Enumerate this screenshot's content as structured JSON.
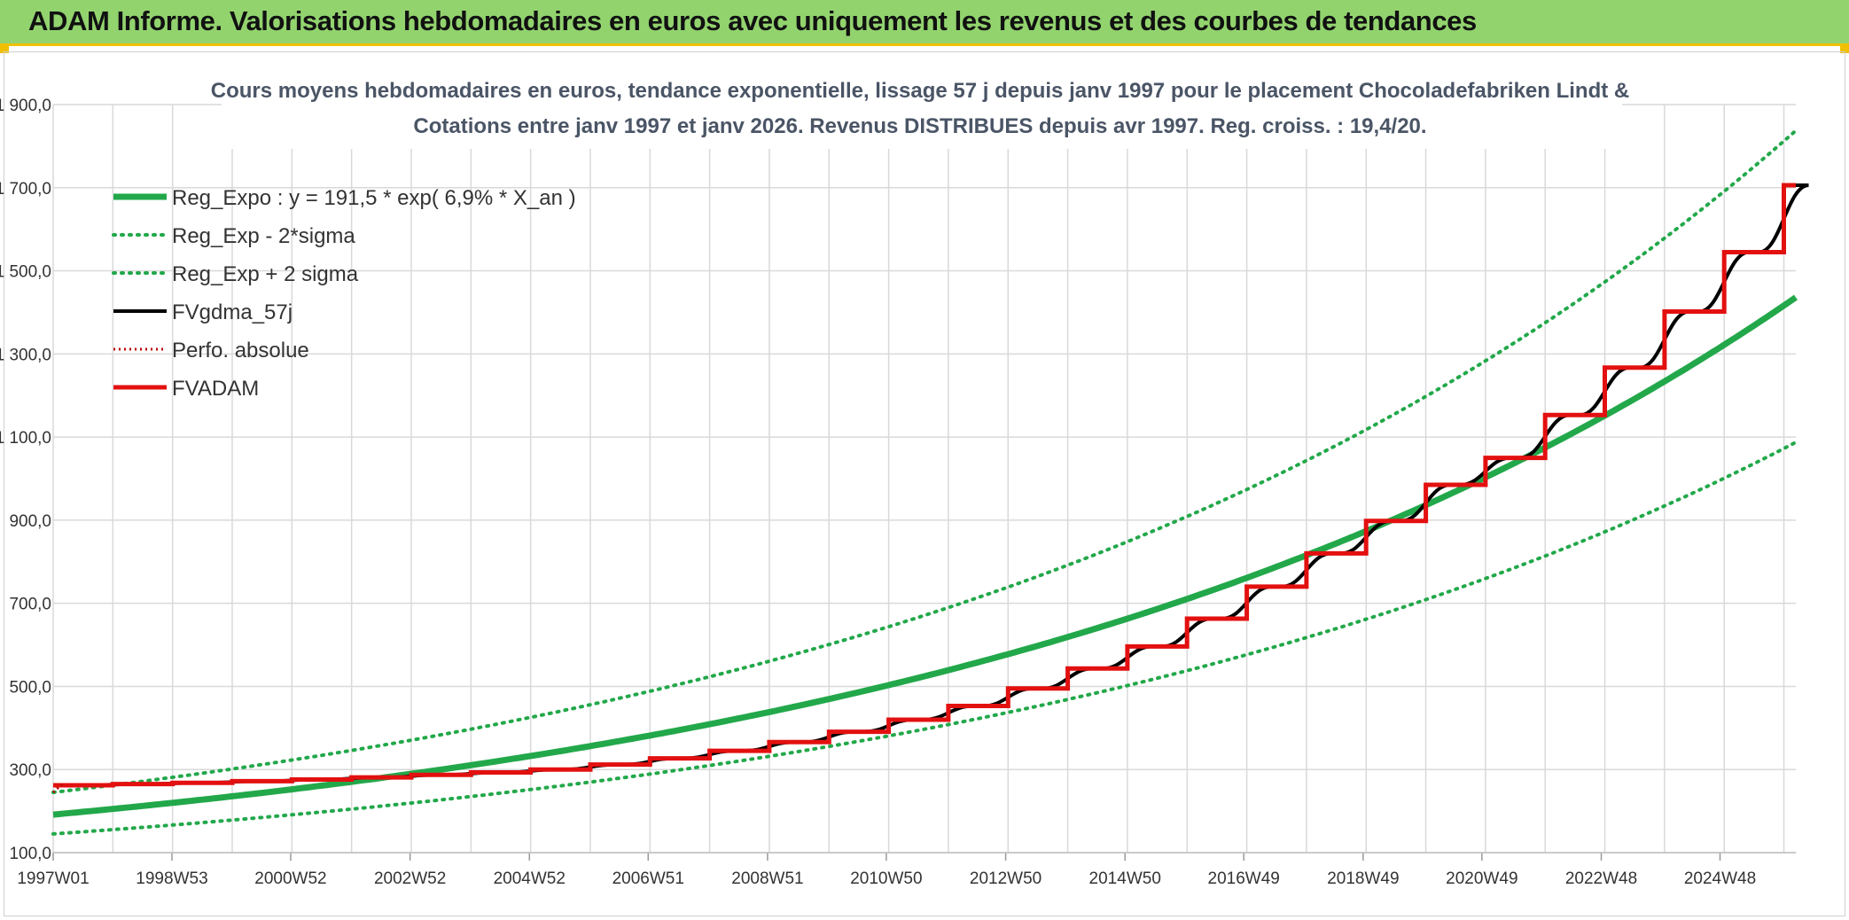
{
  "banner": {
    "title": "ADAM Informe. Valorisations hebdomadaires en euros avec uniquement les revenus et des courbes de tendances"
  },
  "chart_data": {
    "type": "line",
    "title": "Cours moyens hebdomadaires en euros, tendance exponentielle, lissage 57 j depuis janv 1997 pour le placement Chocoladefabriken Lindt &",
    "subtitle": "Cotations entre janv 1997 et janv 2026. Revenus DISTRIBUES depuis avr 1997. Reg. croiss. : 19,4/20.",
    "xlabel": "",
    "ylabel": "",
    "xlim": [
      1997.0,
      2026.2
    ],
    "ylim": [
      100,
      1900
    ],
    "y_ticks": [
      100,
      300,
      500,
      700,
      900,
      1100,
      1300,
      1500,
      1700,
      1900
    ],
    "y_tick_labels": [
      "100,0",
      "300,0",
      "500,0",
      "700,0",
      "900,0",
      "1 100,0",
      "1 300,0",
      "1 500,0",
      "1 700,0",
      "1 900,0"
    ],
    "x_ticks": [
      1997.0,
      1998.99,
      2000.98,
      2002.98,
      2004.98,
      2006.97,
      2008.97,
      2010.96,
      2012.96,
      2014.96,
      2016.95,
      2018.95,
      2020.94,
      2022.94,
      2024.93
    ],
    "x_tick_labels": [
      "1997W01",
      "1998W53",
      "2000W52",
      "2002W52",
      "2004W52",
      "2006W51",
      "2008W51",
      "2010W50",
      "2012W50",
      "2014W50",
      "2016W49",
      "2018W49",
      "2020W49",
      "2022W48",
      "2024W48"
    ],
    "grid": true,
    "legend_position": "top-left",
    "colors": {
      "trend": "#22a84a",
      "fvgdma": "#000000",
      "fvadam": "#e31010",
      "perfo": "#c00000",
      "grid": "#d9d9d9"
    },
    "series": [
      {
        "name": "Reg_Expo : y = 191,5 * exp( 6,9% *  X_an )",
        "style": "trend",
        "model": "exponential",
        "a": 191.5,
        "rate": 0.069,
        "x0": 1997.0
      },
      {
        "name": "Reg_Exp - 2*sigma",
        "style": "trend-dotted",
        "model": "exponential",
        "a": 145,
        "rate": 0.069,
        "x0": 1997.0
      },
      {
        "name": "Reg_Exp + 2 sigma",
        "style": "trend-dotted",
        "model": "exponential",
        "a": 245,
        "rate": 0.069,
        "x0": 1997.0
      },
      {
        "name": "FVgdma_57j",
        "style": "smooth-step"
      },
      {
        "name": "Perfo. absolue",
        "style": "dotted-red",
        "x": [
          1997.0,
          1997.15
        ],
        "y": [
          245,
          265
        ]
      },
      {
        "name": "FVADAM",
        "style": "step",
        "x": [
          1997.0,
          1998.0,
          1999.0,
          2000.0,
          2001.0,
          2002.0,
          2003.0,
          2004.0,
          2005.0,
          2006.0,
          2007.0,
          2008.0,
          2009.0,
          2010.0,
          2011.0,
          2012.0,
          2013.0,
          2014.0,
          2015.0,
          2016.0,
          2017.0,
          2018.0,
          2019.0,
          2020.0,
          2021.0,
          2022.0,
          2023.0,
          2024.0,
          2025.0,
          2026.0
        ],
        "y": [
          262,
          265,
          268,
          272,
          276,
          281,
          287,
          293,
          300,
          312,
          327,
          345,
          366,
          391,
          420,
          453,
          495,
          543,
          596,
          663,
          740,
          820,
          898,
          985,
          1050,
          1153,
          1267,
          1402,
          1545,
          1706
        ]
      }
    ]
  }
}
